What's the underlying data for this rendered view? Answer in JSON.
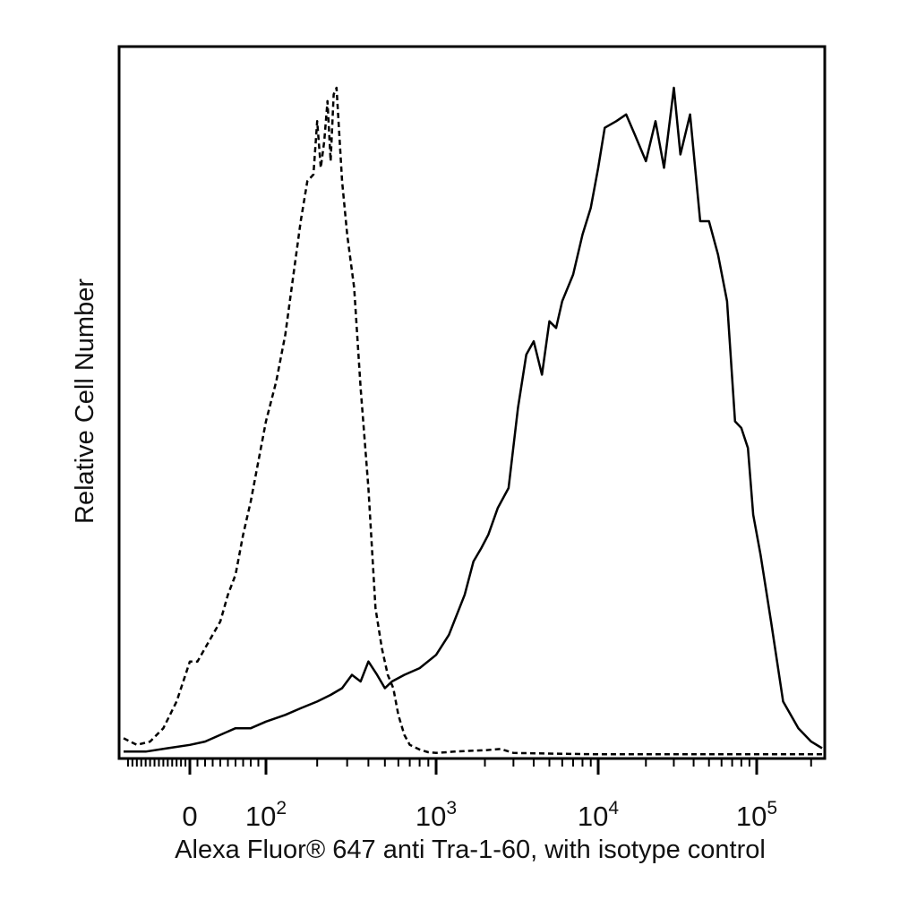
{
  "chart_data": {
    "type": "line",
    "title": "",
    "xlabel": "Alexa Fluor® 647 anti Tra-1-60, with isotype control",
    "ylabel": "Relative Cell Number",
    "x_scale": "biexponential (linear near 0, log above)",
    "xlim": [
      -150,
      230000
    ],
    "ylim": [
      0,
      100
    ],
    "grid": false,
    "legend": "none",
    "x_ticks": [
      {
        "value": 0,
        "base": "0",
        "exp": ""
      },
      {
        "value": 100,
        "base": "10",
        "exp": "2"
      },
      {
        "value": 1000,
        "base": "10",
        "exp": "3"
      },
      {
        "value": 10000,
        "base": "10",
        "exp": "4"
      },
      {
        "value": 100000,
        "base": "10",
        "exp": "5"
      }
    ],
    "series": [
      {
        "line_style": "dashed",
        "color": "#000000",
        "x": [
          -150,
          -120,
          -90,
          -60,
          -30,
          -10,
          0,
          10,
          20,
          30,
          40,
          50,
          60,
          70,
          80,
          90,
          100,
          115,
          130,
          145,
          160,
          175,
          190,
          200,
          210,
          220,
          230,
          240,
          250,
          260,
          280,
          300,
          330,
          360,
          400,
          440,
          480,
          520,
          560,
          600,
          650,
          700,
          800,
          900,
          1000,
          1300,
          1600,
          2000,
          2500,
          3000,
          5000,
          10000,
          30000,
          100000,
          230000
        ],
        "y": [
          2.5,
          1.5,
          2,
          4,
          8,
          12,
          14,
          14,
          16,
          18,
          20,
          24,
          27,
          33,
          38,
          44,
          50,
          56,
          63,
          72,
          80,
          86,
          87,
          95,
          88,
          92,
          98,
          89,
          99,
          100,
          86,
          78,
          70,
          55,
          40,
          22,
          16,
          12,
          10,
          6,
          3,
          1.5,
          0.8,
          0.4,
          0.3,
          0.5,
          0.6,
          0.7,
          0.9,
          0.3,
          0.2,
          0.1,
          0.1,
          0.1,
          0.1
        ]
      },
      {
        "line_style": "solid",
        "color": "#000000",
        "x": [
          -150,
          -100,
          -50,
          0,
          20,
          40,
          60,
          80,
          100,
          130,
          160,
          200,
          240,
          280,
          320,
          360,
          400,
          450,
          500,
          550,
          650,
          800,
          1000,
          1200,
          1500,
          1700,
          1900,
          2100,
          2400,
          2800,
          3200,
          3600,
          4000,
          4500,
          5000,
          5500,
          6000,
          7000,
          8000,
          9000,
          10000,
          11000,
          13000,
          15000,
          17000,
          20000,
          23000,
          26000,
          30000,
          33000,
          38000,
          44000,
          50000,
          57000,
          65000,
          73000,
          80000,
          88000,
          95000,
          105000,
          120000,
          140000,
          170000,
          200000,
          230000
        ],
        "y": [
          0.5,
          0.5,
          1,
          1.5,
          2,
          3,
          4,
          4,
          5,
          6,
          7,
          8,
          9,
          10,
          12,
          11,
          14,
          12,
          10,
          11,
          12,
          13,
          15,
          18,
          24,
          29,
          31,
          33,
          37,
          40,
          52,
          60,
          62,
          57,
          65,
          64,
          68,
          72,
          78,
          82,
          88,
          94,
          95,
          96,
          93,
          89,
          95,
          88,
          100,
          90,
          96,
          80,
          80,
          75,
          68,
          50,
          49,
          46,
          36,
          30,
          20,
          8,
          4,
          2,
          1
        ]
      }
    ]
  }
}
